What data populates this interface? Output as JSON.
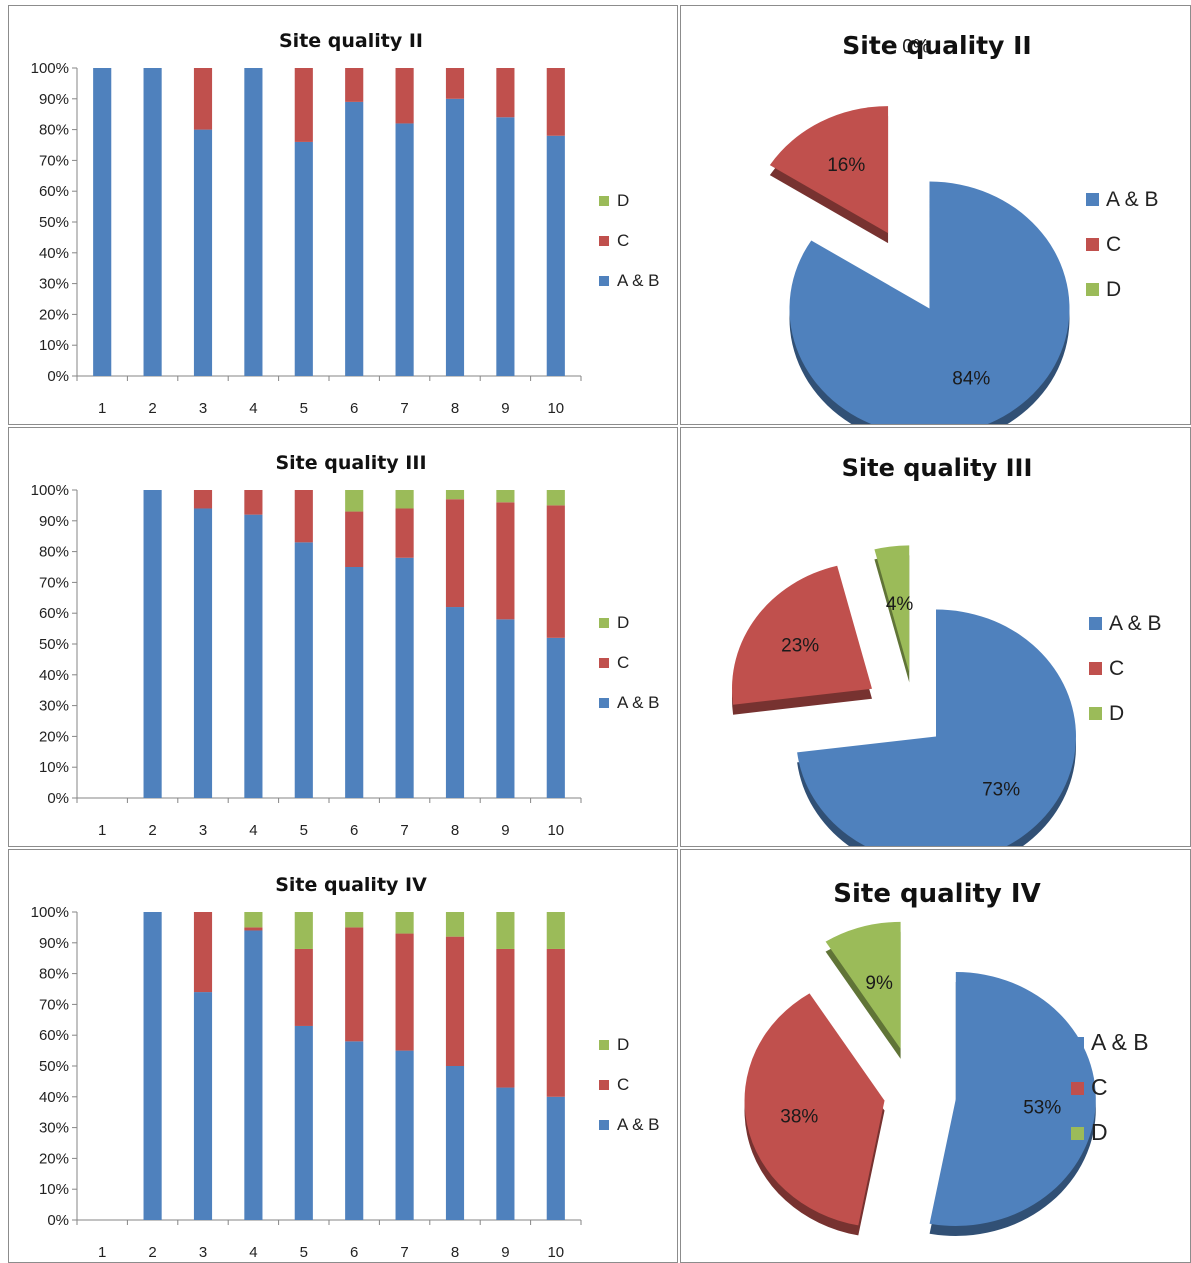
{
  "colors": {
    "AB": "#4f81bd",
    "C": "#c0504d",
    "D": "#9bbb59",
    "axis": "#868686"
  },
  "legend": {
    "order": [
      "D",
      "C",
      "A & B"
    ]
  },
  "chart_data": [
    {
      "type": "bar",
      "stacked": true,
      "title": "Site quality II",
      "categories": [
        "1",
        "2",
        "3",
        "4",
        "5",
        "6",
        "7",
        "8",
        "9",
        "10"
      ],
      "y_ticks": [
        "0%",
        "10%",
        "20%",
        "30%",
        "40%",
        "50%",
        "60%",
        "70%",
        "80%",
        "90%",
        "100%"
      ],
      "ylim": [
        0,
        100
      ],
      "legend_position": "right",
      "series": [
        {
          "name": "A & B",
          "values": [
            100,
            100,
            80,
            100,
            76,
            89,
            82,
            90,
            84,
            78
          ]
        },
        {
          "name": "C",
          "values": [
            0,
            0,
            20,
            0,
            24,
            11,
            18,
            10,
            16,
            22
          ]
        },
        {
          "name": "D",
          "values": [
            0,
            0,
            0,
            0,
            0,
            0,
            0,
            0,
            0,
            0
          ]
        }
      ]
    },
    {
      "type": "pie",
      "title": "Site quality II",
      "exploded": true,
      "legend_position": "right",
      "series": [
        {
          "name": "A & B",
          "value": 84,
          "label": "84%"
        },
        {
          "name": "C",
          "value": 16,
          "label": "16%"
        },
        {
          "name": "D",
          "value": 0,
          "label": "0%"
        }
      ]
    },
    {
      "type": "bar",
      "stacked": true,
      "title": "Site quality III",
      "categories": [
        "1",
        "2",
        "3",
        "4",
        "5",
        "6",
        "7",
        "8",
        "9",
        "10"
      ],
      "y_ticks": [
        "0%",
        "10%",
        "20%",
        "30%",
        "40%",
        "50%",
        "60%",
        "70%",
        "80%",
        "90%",
        "100%"
      ],
      "ylim": [
        0,
        100
      ],
      "legend_position": "right",
      "series": [
        {
          "name": "A & B",
          "values": [
            0,
            100,
            94,
            92,
            83,
            75,
            78,
            62,
            58,
            52
          ]
        },
        {
          "name": "C",
          "values": [
            0,
            0,
            6,
            8,
            17,
            18,
            16,
            35,
            38,
            43
          ]
        },
        {
          "name": "D",
          "values": [
            0,
            0,
            0,
            0,
            0,
            7,
            6,
            3,
            4,
            5
          ]
        }
      ]
    },
    {
      "type": "pie",
      "title": "Site quality III",
      "exploded": true,
      "legend_position": "right",
      "series": [
        {
          "name": "A & B",
          "value": 73,
          "label": "73%"
        },
        {
          "name": "C",
          "value": 23,
          "label": "23%"
        },
        {
          "name": "D",
          "value": 4,
          "label": "4%"
        }
      ]
    },
    {
      "type": "bar",
      "stacked": true,
      "title": "Site quality IV",
      "categories": [
        "1",
        "2",
        "3",
        "4",
        "5",
        "6",
        "7",
        "8",
        "9",
        "10"
      ],
      "y_ticks": [
        "0%",
        "10%",
        "20%",
        "30%",
        "40%",
        "50%",
        "60%",
        "70%",
        "80%",
        "90%",
        "100%"
      ],
      "ylim": [
        0,
        100
      ],
      "legend_position": "right",
      "series": [
        {
          "name": "A & B",
          "values": [
            0,
            100,
            74,
            94,
            63,
            58,
            55,
            50,
            43,
            40
          ]
        },
        {
          "name": "C",
          "values": [
            0,
            0,
            26,
            1,
            25,
            37,
            38,
            42,
            45,
            48
          ]
        },
        {
          "name": "D",
          "values": [
            0,
            0,
            0,
            5,
            12,
            5,
            7,
            8,
            12,
            12
          ]
        }
      ]
    },
    {
      "type": "pie",
      "title": "Site quality IV",
      "exploded": true,
      "legend_position": "right",
      "series": [
        {
          "name": "A & B",
          "value": 53,
          "label": "53%"
        },
        {
          "name": "C",
          "value": 38,
          "label": "38%"
        },
        {
          "name": "D",
          "value": 9,
          "label": "9%"
        }
      ]
    }
  ]
}
